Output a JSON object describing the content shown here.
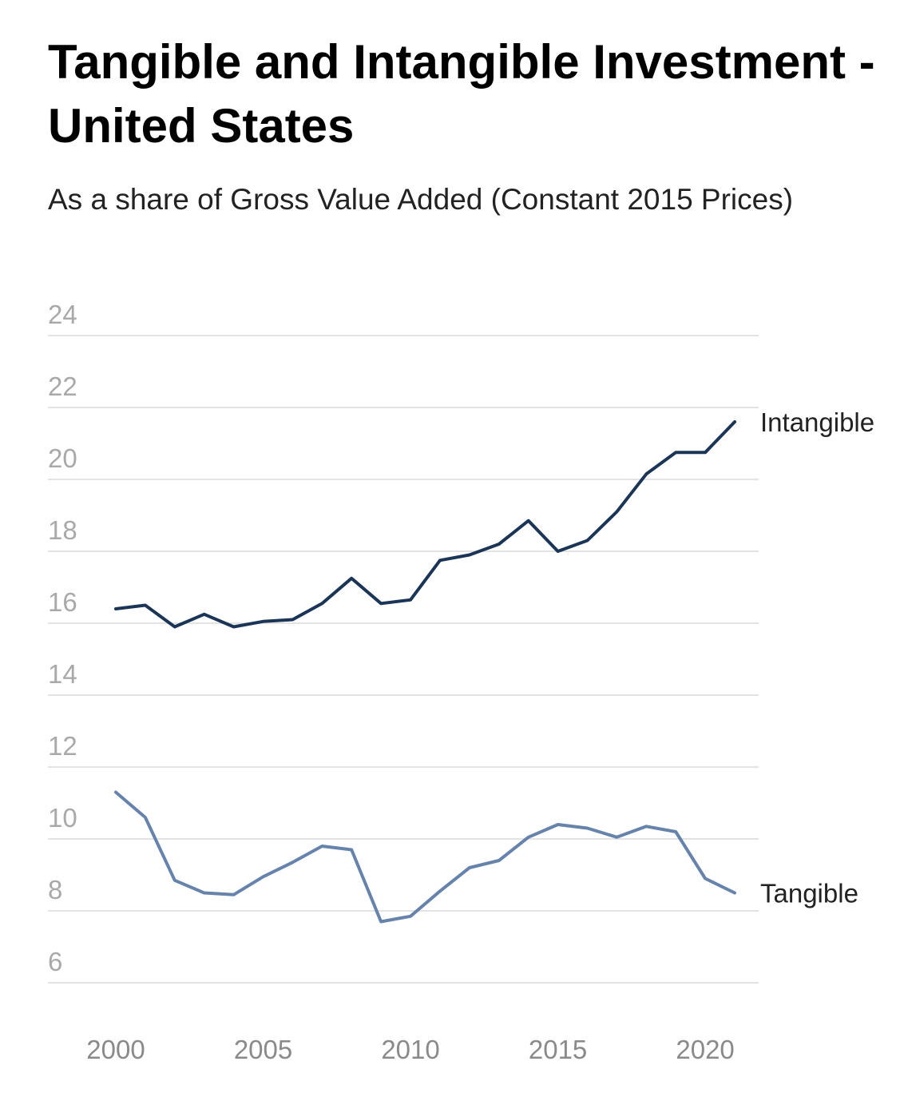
{
  "chart_data": {
    "type": "line",
    "title": "Tangible and Intangible Investment - United States",
    "subtitle": "As a share of Gross Value Added (Constant 2015 Prices)",
    "xlabel": "",
    "ylabel": "",
    "x": [
      2000,
      2001,
      2002,
      2003,
      2004,
      2005,
      2006,
      2007,
      2008,
      2009,
      2010,
      2011,
      2012,
      2013,
      2014,
      2015,
      2016,
      2017,
      2018,
      2019,
      2020,
      2021
    ],
    "xticks": [
      "2000",
      "2005",
      "2010",
      "2015",
      "2020"
    ],
    "yticks": [
      "24",
      "22",
      "20",
      "18",
      "16",
      "14",
      "12",
      "10",
      "8",
      "6"
    ],
    "xlim": [
      2000,
      2021
    ],
    "ylim": [
      6,
      24
    ],
    "grid": true,
    "legend": "direct labels at line ends (right)",
    "series": [
      {
        "name": "Intangible",
        "color": "#1b3556",
        "values": [
          16.4,
          16.5,
          15.9,
          16.25,
          15.9,
          16.05,
          16.1,
          16.55,
          17.25,
          16.55,
          16.65,
          17.75,
          17.9,
          18.2,
          18.85,
          18.0,
          18.3,
          19.1,
          20.15,
          20.75,
          20.75,
          21.6
        ]
      },
      {
        "name": "Tangible",
        "color": "#6683ab",
        "values": [
          11.3,
          10.6,
          8.85,
          8.5,
          8.45,
          8.95,
          9.35,
          9.8,
          9.7,
          7.7,
          7.85,
          8.55,
          9.2,
          9.4,
          10.05,
          10.4,
          10.3,
          10.05,
          10.35,
          10.2,
          8.9,
          8.5
        ]
      }
    ]
  }
}
